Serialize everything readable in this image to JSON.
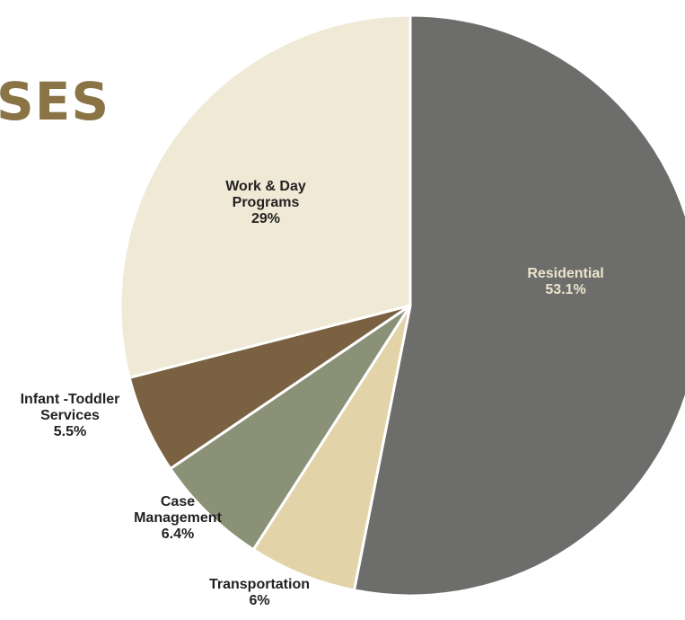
{
  "heading_fragment": "SES",
  "chart_data": {
    "type": "pie",
    "title": "",
    "start_angle_deg": 0,
    "direction": "clockwise",
    "slices": [
      {
        "label_lines": [
          "Residential",
          "53.1%"
        ],
        "value": 53.1,
        "color": "#6d6e6b",
        "label_color": "#ebe4cc",
        "label_inside": true
      },
      {
        "label_lines": [
          "Transportation",
          "6%"
        ],
        "value": 6,
        "color": "#e2d3a9",
        "label_color": "#222222",
        "label_inside": false
      },
      {
        "label_lines": [
          "Case",
          "Management",
          "6.4%"
        ],
        "value": 6.4,
        "color": "#8a9177",
        "label_color": "#222222",
        "label_inside": false
      },
      {
        "label_lines": [
          "Infant -Toddler",
          "Services",
          "5.5%"
        ],
        "value": 5.5,
        "color": "#7a6141",
        "label_color": "#222222",
        "label_inside": false
      },
      {
        "label_lines": [
          "Work & Day",
          "Programs",
          "29%"
        ],
        "value": 29,
        "color": "#f0e9d6",
        "label_color": "#222222",
        "label_inside": true
      }
    ]
  }
}
